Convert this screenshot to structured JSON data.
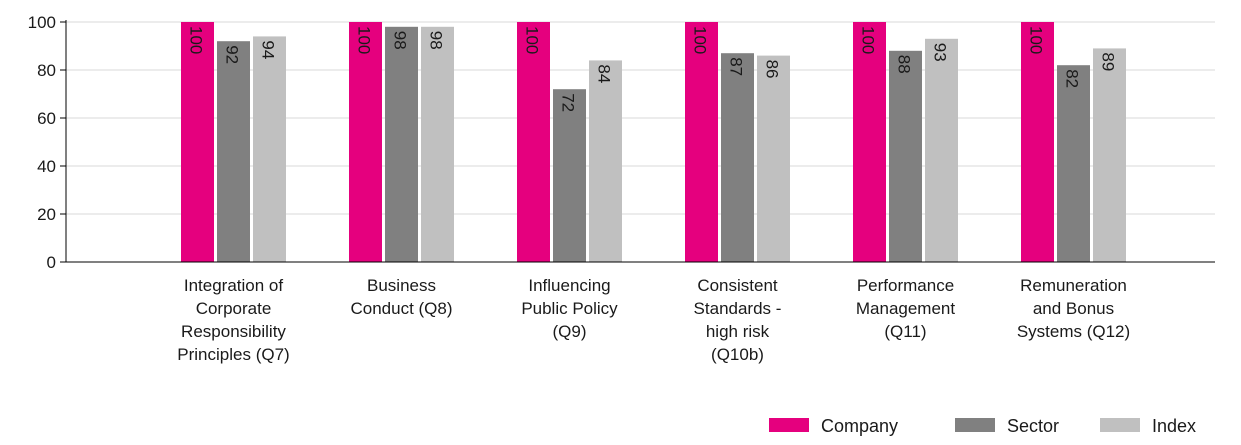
{
  "chart_data": {
    "type": "bar",
    "categories": [
      [
        "Integration of",
        "Corporate",
        "Responsibility",
        "Principles (Q7)"
      ],
      [
        "Business",
        "Conduct (Q8)"
      ],
      [
        "Influencing",
        "Public Policy",
        "(Q9)"
      ],
      [
        "Consistent",
        "Standards -",
        "high risk",
        "(Q10b)"
      ],
      [
        "Performance",
        "Management",
        "(Q11)"
      ],
      [
        "Remuneration",
        "and Bonus",
        "Systems (Q12)"
      ]
    ],
    "series": [
      {
        "name": "Company",
        "color": "#e5007e",
        "values": [
          100,
          100,
          100,
          100,
          100,
          100
        ]
      },
      {
        "name": "Sector",
        "color": "#808080",
        "values": [
          92,
          98,
          72,
          87,
          88,
          82
        ]
      },
      {
        "name": "Index",
        "color": "#c0c0c0",
        "values": [
          94,
          98,
          84,
          86,
          93,
          89
        ]
      }
    ],
    "ylim": [
      0,
      100
    ],
    "yticks": [
      0,
      20,
      40,
      60,
      80,
      100
    ],
    "grid": true,
    "legend_position": "bottom-right",
    "data_labels": "rotated-inside-top"
  }
}
